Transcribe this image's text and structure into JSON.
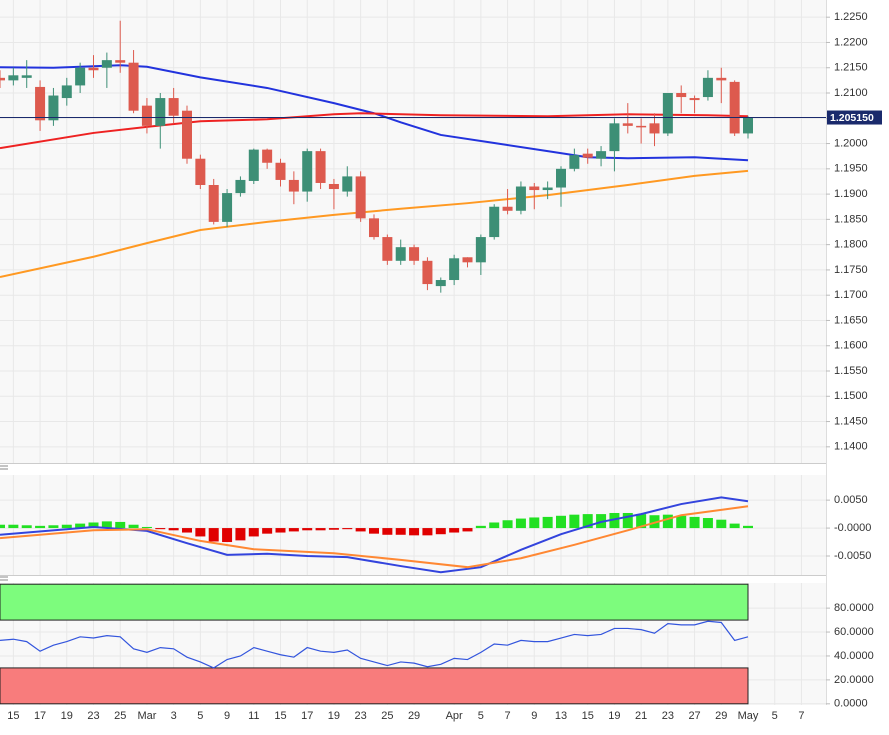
{
  "chart_data": [
    {
      "type": "candlestick",
      "categories": [
        null,
        "15",
        null,
        "17",
        null,
        "19",
        null,
        "23",
        null,
        "25",
        null,
        "Mar",
        null,
        "3",
        null,
        "5",
        null,
        "9",
        null,
        "11",
        null,
        "15",
        null,
        "17",
        null,
        "19",
        null,
        "23",
        null,
        "25",
        null,
        "29",
        null,
        null,
        "Apr",
        null,
        "5",
        null,
        "7",
        null,
        "9",
        null,
        "13",
        null,
        "15",
        null,
        "19",
        null,
        "21",
        null,
        "23",
        null,
        "27",
        null,
        "29",
        null,
        "May",
        null,
        "5",
        null,
        "7"
      ],
      "open": [
        1.213,
        1.2125,
        1.213,
        1.2112,
        1.2046,
        1.209,
        1.2115,
        1.215,
        1.215,
        1.2165,
        1.216,
        1.2075,
        1.2035,
        1.209,
        1.2065,
        1.197,
        1.1918,
        1.1845,
        1.1902,
        1.1926,
        1.1988,
        1.1962,
        1.1928,
        1.1905,
        1.1985,
        1.192,
        1.1905,
        1.1935,
        1.1852,
        1.1815,
        1.1768,
        1.1795,
        1.1768,
        1.1718,
        1.173,
        1.1775,
        1.1765,
        1.1815,
        1.1875,
        1.1867,
        1.1915,
        1.1908,
        1.1913,
        1.195,
        1.198,
        1.197,
        1.1985,
        1.204,
        1.2035,
        1.204,
        1.202,
        1.21,
        1.209,
        1.2092,
        1.213,
        1.2122,
        1.202,
        null,
        null,
        null,
        null
      ],
      "high": [
        1.2145,
        1.215,
        1.2165,
        1.2125,
        1.211,
        1.213,
        1.216,
        1.2175,
        1.218,
        1.2243,
        1.2185,
        1.209,
        1.21,
        1.211,
        1.2075,
        1.1978,
        1.193,
        1.191,
        1.1935,
        1.199,
        1.199,
        1.197,
        1.1945,
        1.199,
        1.199,
        1.193,
        1.1955,
        1.1945,
        1.186,
        1.182,
        1.181,
        1.18,
        1.1775,
        1.1735,
        1.178,
        1.1775,
        1.182,
        1.188,
        1.191,
        1.1925,
        1.1922,
        1.1925,
        1.1955,
        1.199,
        1.199,
        1.1995,
        1.205,
        1.208,
        1.205,
        1.206,
        1.21,
        1.2115,
        1.2095,
        1.2145,
        1.215,
        1.2125,
        1.2055,
        null,
        null,
        null,
        null
      ],
      "low": [
        1.211,
        1.2115,
        1.211,
        1.2025,
        1.2035,
        1.2075,
        1.21,
        1.213,
        1.211,
        1.214,
        1.206,
        1.202,
        1.199,
        1.204,
        1.196,
        1.191,
        1.184,
        1.1835,
        1.1895,
        1.192,
        1.195,
        1.1915,
        1.188,
        1.1885,
        1.191,
        1.187,
        1.1895,
        1.1845,
        1.181,
        1.176,
        1.176,
        1.176,
        1.171,
        1.1705,
        1.172,
        1.1755,
        1.174,
        1.181,
        1.186,
        1.186,
        1.187,
        1.189,
        1.1875,
        1.1945,
        1.196,
        1.1955,
        1.1945,
        1.202,
        1.2,
        1.1995,
        1.2015,
        1.206,
        1.206,
        1.2085,
        1.208,
        1.2015,
        1.201,
        null,
        null,
        null,
        null
      ],
      "close": [
        1.2125,
        1.2135,
        1.2135,
        1.2046,
        1.2095,
        1.2115,
        1.215,
        1.2145,
        1.2165,
        1.216,
        1.2065,
        1.2035,
        1.209,
        1.2055,
        1.197,
        1.1918,
        1.1845,
        1.1902,
        1.1928,
        1.1988,
        1.1962,
        1.1928,
        1.1905,
        1.1985,
        1.1922,
        1.191,
        1.1935,
        1.1852,
        1.1815,
        1.1768,
        1.1795,
        1.1768,
        1.1722,
        1.173,
        1.1773,
        1.1765,
        1.1815,
        1.1875,
        1.1867,
        1.1915,
        1.1908,
        1.1913,
        1.195,
        1.1977,
        1.1972,
        1.1985,
        1.204,
        1.2035,
        1.2032,
        1.202,
        1.21,
        1.2092,
        1.2086,
        1.213,
        1.2125,
        1.202,
        1.2051,
        null,
        null,
        null,
        null
      ],
      "up_color": "#3d8f76",
      "down_color": "#dd5a4e",
      "lines": [
        {
          "color": "#2233dd",
          "x": [
            0,
            4,
            9,
            11,
            15,
            20,
            25,
            28,
            30,
            33,
            37,
            41,
            44,
            47,
            52,
            56
          ],
          "values": [
            1.2151,
            1.215,
            1.2155,
            1.2152,
            1.2131,
            1.211,
            1.208,
            1.206,
            1.2042,
            1.2017,
            1.2001,
            1.1985,
            1.1973,
            1.1971,
            1.1973,
            1.1967
          ]
        },
        {
          "color": "#ee2222",
          "x": [
            0,
            7,
            11,
            15,
            20,
            25,
            27,
            33,
            41,
            47,
            53,
            56
          ],
          "values": [
            1.1991,
            1.2021,
            1.2033,
            1.2044,
            1.2048,
            1.2058,
            1.206,
            1.2056,
            1.2054,
            1.2058,
            1.2056,
            1.2054
          ]
        },
        {
          "color": "#ff9922",
          "x": [
            0,
            7,
            11,
            15,
            20,
            25,
            30,
            35,
            41,
            47,
            52,
            56
          ],
          "values": [
            1.1736,
            1.1776,
            1.1803,
            1.1829,
            1.1845,
            1.1859,
            1.1871,
            1.1882,
            1.1898,
            1.1918,
            1.1936,
            1.1946
          ]
        }
      ],
      "price_line": {
        "value": 1.20515,
        "label": "1.205150",
        "color": "#1a2a6c"
      },
      "ylim": [
        1.1368,
        1.2284
      ],
      "yticks": [
        {
          "value": 1.225,
          "label": "1.2250"
        },
        {
          "value": 1.22,
          "label": "1.2200"
        },
        {
          "value": 1.215,
          "label": "1.2150"
        },
        {
          "value": 1.21,
          "label": "1.2100"
        },
        {
          "value": 1.205,
          "label": "1.2050"
        },
        {
          "value": 1.2,
          "label": "1.2000"
        },
        {
          "value": 1.195,
          "label": "1.1950"
        },
        {
          "value": 1.19,
          "label": "1.1900"
        },
        {
          "value": 1.185,
          "label": "1.1850"
        },
        {
          "value": 1.18,
          "label": "1.1800"
        },
        {
          "value": 1.175,
          "label": "1.1750"
        },
        {
          "value": 1.17,
          "label": "1.1700"
        },
        {
          "value": 1.165,
          "label": "1.1650"
        },
        {
          "value": 1.16,
          "label": "1.1600"
        },
        {
          "value": 1.155,
          "label": "1.1550"
        },
        {
          "value": 1.15,
          "label": "1.1500"
        },
        {
          "value": 1.145,
          "label": "1.1450"
        },
        {
          "value": 1.14,
          "label": "1.1400"
        }
      ],
      "grid": true
    },
    {
      "type": "macd",
      "histogram": [
        0.0006,
        0.0006,
        0.0005,
        0.0004,
        0.0005,
        0.0006,
        0.0008,
        0.001,
        0.0012,
        0.0011,
        0.0006,
        0.0002,
        -0.0002,
        -0.0004,
        -0.0008,
        -0.0015,
        -0.0024,
        -0.0025,
        -0.0022,
        -0.0015,
        -0.001,
        -0.0008,
        -0.0006,
        -0.0004,
        -0.0004,
        -0.0003,
        -0.0002,
        -0.0006,
        -0.001,
        -0.0012,
        -0.0012,
        -0.0013,
        -0.0013,
        -0.0011,
        -0.0008,
        -0.0006,
        0.0004,
        0.001,
        0.0014,
        0.0017,
        0.0019,
        0.002,
        0.0022,
        0.0024,
        0.0025,
        0.0025,
        0.0027,
        0.0027,
        0.0025,
        0.0023,
        0.0024,
        0.0022,
        0.002,
        0.0018,
        0.0015,
        0.0008,
        0.0004,
        null,
        null,
        null,
        null
      ],
      "up_color": "#22e022",
      "down_color": "#e00000",
      "lines": [
        {
          "color": "#3344dd",
          "x": [
            0,
            7,
            11,
            14,
            17,
            20,
            23,
            26,
            30,
            33,
            36,
            39,
            42,
            45,
            48,
            51,
            54,
            56
          ],
          "values": [
            -0.0012,
            0.0002,
            -0.0005,
            -0.0027,
            -0.0048,
            -0.0046,
            -0.005,
            -0.0052,
            -0.0068,
            -0.0079,
            -0.007,
            -0.0039,
            -0.0011,
            0.0011,
            0.0025,
            0.0043,
            0.0055,
            0.0048
          ]
        },
        {
          "color": "#ff8833",
          "x": [
            0,
            7,
            11,
            15,
            19,
            25,
            30,
            35,
            39,
            43,
            47,
            51,
            56
          ],
          "values": [
            -0.0018,
            -0.0004,
            -0.0002,
            -0.0023,
            -0.0038,
            -0.0045,
            -0.0057,
            -0.007,
            -0.0054,
            -0.003,
            -0.0004,
            0.0023,
            0.0039
          ]
        }
      ],
      "ylim": [
        -0.0084,
        0.0095
      ],
      "yticks": [
        {
          "value": 0.005,
          "label": "0.0050"
        },
        {
          "value": 0,
          "label": "-0.0000"
        },
        {
          "value": -0.005,
          "label": "-0.0050"
        }
      ],
      "grid": true
    },
    {
      "type": "rsi",
      "values": [
        53,
        54,
        52,
        44,
        49,
        52,
        56,
        55,
        57,
        56,
        46,
        43,
        47,
        46,
        39,
        35,
        30,
        37,
        40,
        47,
        44,
        41,
        39,
        47,
        44,
        43,
        45,
        38,
        35,
        32,
        35,
        34,
        31,
        33,
        38,
        37,
        43,
        50,
        49,
        53,
        52,
        52,
        55,
        58,
        57,
        58,
        63,
        63,
        62,
        59,
        67,
        66,
        66,
        69,
        68,
        53,
        56,
        null,
        null,
        null,
        null
      ],
      "color": "#3355dd",
      "bands": [
        {
          "from": 70,
          "to": 100,
          "color": "#7dfc7d"
        },
        {
          "from": 0,
          "to": 30,
          "color": "#f87c7c"
        }
      ],
      "ylim": [
        -1,
        101
      ],
      "yticks": [
        {
          "value": 80,
          "label": "80.0000"
        },
        {
          "value": 60,
          "label": "60.0000"
        },
        {
          "value": 40,
          "label": "40.0000"
        },
        {
          "value": 20,
          "label": "20.0000"
        },
        {
          "value": 0,
          "label": "0.0000"
        }
      ],
      "grid": true
    }
  ]
}
